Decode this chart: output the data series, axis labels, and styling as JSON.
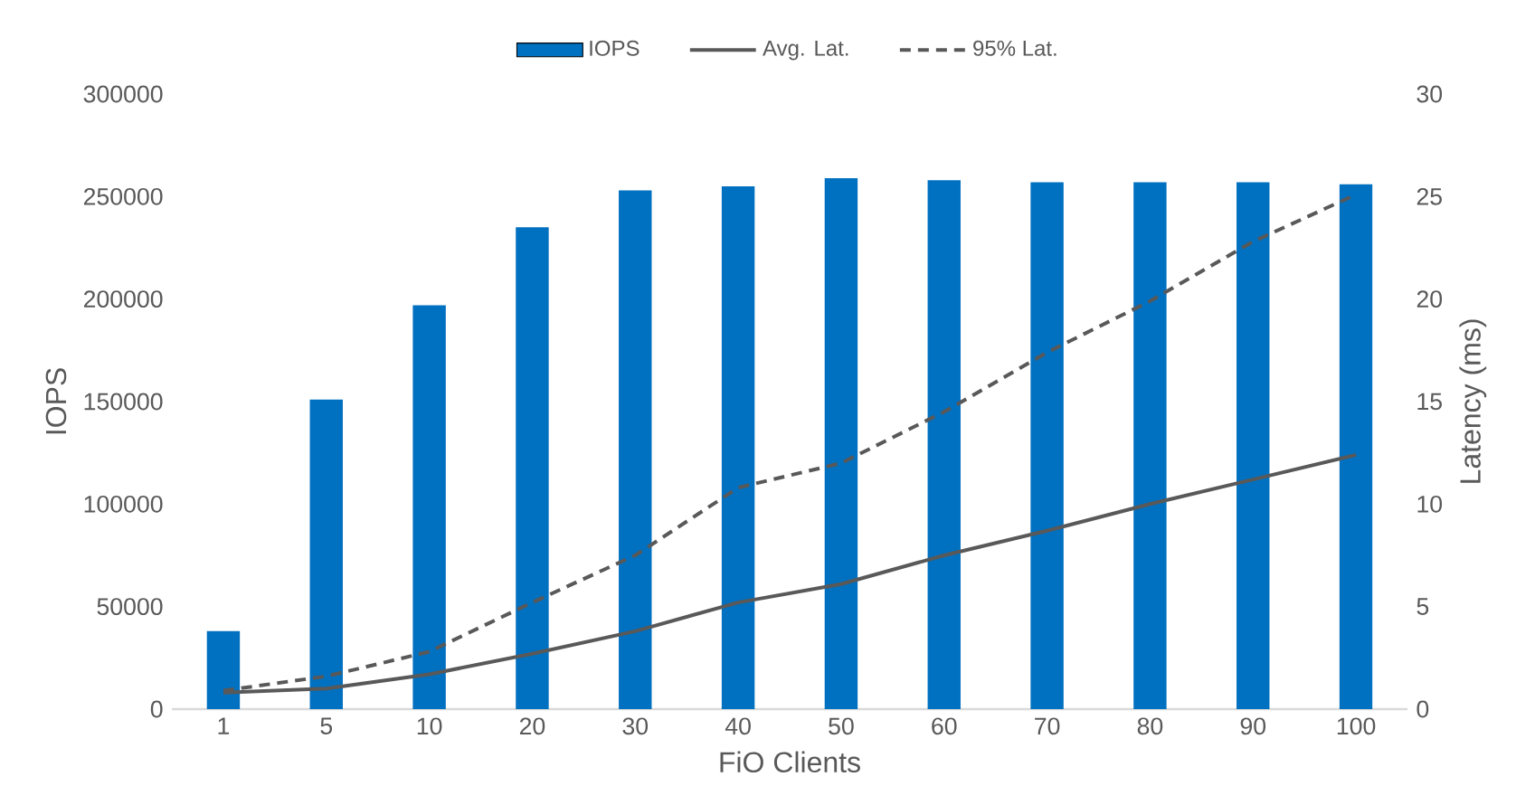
{
  "chart_data": {
    "type": "bar",
    "xlabel": "FiO Clients",
    "ylabel": "IOPS",
    "y2label": "Latency (ms)",
    "categories": [
      "1",
      "5",
      "10",
      "20",
      "30",
      "40",
      "50",
      "60",
      "70",
      "80",
      "90",
      "100"
    ],
    "series": [
      {
        "name": "IOPS",
        "color": "#0070c0",
        "values": [
          38000,
          151000,
          197000,
          235000,
          253000,
          255000,
          259000,
          258000,
          257000,
          257000,
          257000,
          256000
        ]
      },
      {
        "name": "Avg. Lat.",
        "type": "line",
        "axis": "y2",
        "color": "#595959",
        "line_style": "solid",
        "values": [
          0.8,
          1.0,
          1.7,
          2.7,
          3.8,
          5.2,
          6.1,
          7.5,
          8.7,
          10.0,
          11.2,
          12.4
        ]
      },
      {
        "name": "95% Lat.",
        "type": "line",
        "axis": "y2",
        "color": "#595959",
        "line_style": "dashed",
        "values": [
          0.9,
          1.6,
          2.8,
          5.2,
          7.5,
          10.8,
          12.0,
          14.5,
          17.4,
          19.9,
          22.8,
          25.1
        ]
      }
    ],
    "ylim": [
      0,
      300000
    ],
    "yticks": [
      0,
      50000,
      100000,
      150000,
      200000,
      250000,
      300000
    ],
    "y2lim": [
      0,
      30
    ],
    "y2ticks": [
      0,
      5,
      10,
      15,
      20,
      25,
      30
    ],
    "legend": "top"
  }
}
